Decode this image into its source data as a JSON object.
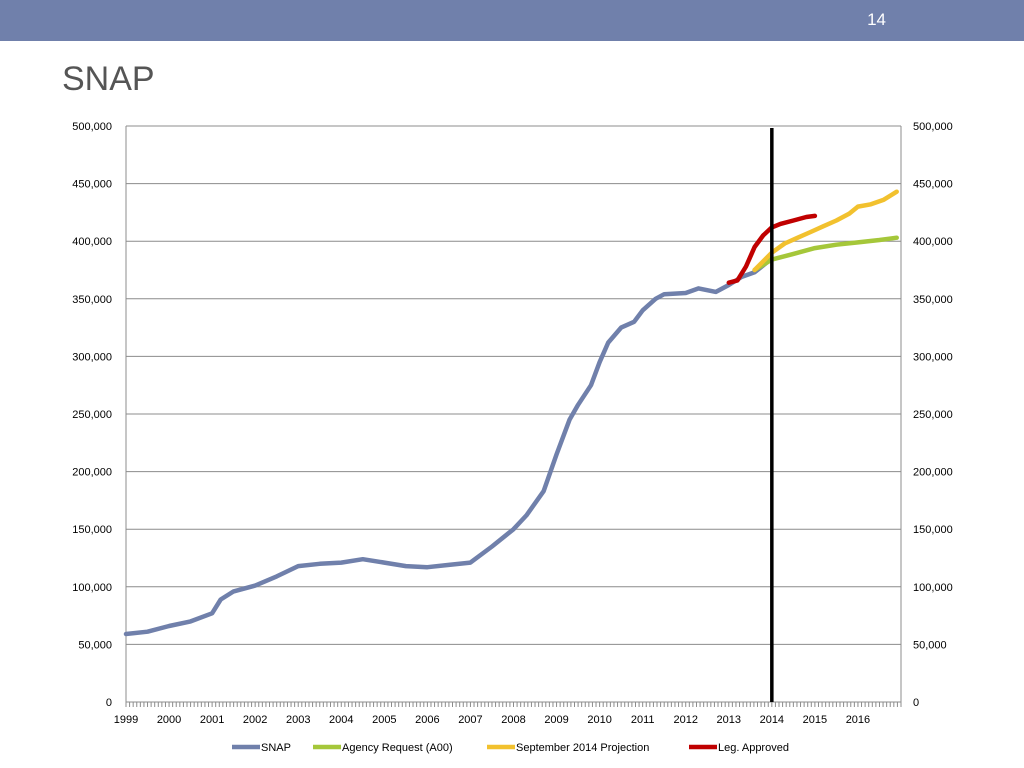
{
  "slide": {
    "page_number": "14",
    "title": "SNAP"
  },
  "chart_data": {
    "type": "line",
    "title": "",
    "xlabel": "",
    "ylabel": "",
    "ylim": [
      0,
      500000
    ],
    "xlim": [
      1999,
      2017
    ],
    "grid": "horizontal",
    "secondary_y_axis": true,
    "legend_position": "bottom",
    "y_ticks": [
      0,
      50000,
      100000,
      150000,
      200000,
      250000,
      300000,
      350000,
      400000,
      450000,
      500000
    ],
    "y_tick_labels": [
      "0",
      "50,000",
      "100,000",
      "150,000",
      "200,000",
      "250,000",
      "300,000",
      "350,000",
      "400,000",
      "450,000",
      "500,000"
    ],
    "x_ticks": [
      1999,
      2000,
      2001,
      2002,
      2003,
      2004,
      2005,
      2006,
      2007,
      2008,
      2009,
      2010,
      2011,
      2012,
      2013,
      2014,
      2015,
      2016
    ],
    "x_tick_labels": [
      "1999",
      "2000",
      "2001",
      "2002",
      "2003",
      "2004",
      "2005",
      "2006",
      "2007",
      "2008",
      "2009",
      "2010",
      "2011",
      "2012",
      "2013",
      "2014",
      "2015",
      "2016"
    ],
    "vertical_marker": {
      "x": 2014.0,
      "color": "#000000"
    },
    "series": [
      {
        "name": "SNAP",
        "color": "#7080ab",
        "x": [
          1999.0,
          1999.5,
          2000.0,
          2000.5,
          2001.0,
          2001.2,
          2001.5,
          2002.0,
          2002.5,
          2003.0,
          2003.5,
          2004.0,
          2004.5,
          2005.0,
          2005.5,
          2006.0,
          2006.5,
          2007.0,
          2007.5,
          2008.0,
          2008.3,
          2008.7,
          2009.0,
          2009.3,
          2009.5,
          2009.8,
          2010.0,
          2010.2,
          2010.5,
          2010.8,
          2011.0,
          2011.3,
          2011.5,
          2012.0,
          2012.3,
          2012.7,
          2013.0,
          2013.3,
          2013.6,
          2014.0
        ],
        "values": [
          59000,
          61000,
          66000,
          70000,
          77000,
          89000,
          96000,
          101000,
          109000,
          118000,
          120000,
          121000,
          124000,
          121000,
          118000,
          117000,
          119000,
          121000,
          135000,
          150000,
          162000,
          183000,
          215000,
          245000,
          258000,
          275000,
          295000,
          312000,
          325000,
          330000,
          340000,
          350000,
          354000,
          355000,
          359000,
          356000,
          362000,
          369000,
          373000,
          385000
        ]
      },
      {
        "name": "Agency Request (A00)",
        "color": "#a5c73a",
        "x": [
          2013.6,
          2014.0,
          2014.5,
          2015.0,
          2015.5,
          2016.0,
          2016.5,
          2016.9
        ],
        "values": [
          375000,
          384000,
          389000,
          394000,
          397000,
          399000,
          401000,
          403000
        ]
      },
      {
        "name": "September 2014 Projection",
        "color": "#f2c12e",
        "x": [
          2013.6,
          2014.0,
          2014.3,
          2014.6,
          2014.9,
          2015.2,
          2015.5,
          2015.8,
          2016.0,
          2016.3,
          2016.6,
          2016.9
        ],
        "values": [
          375000,
          390000,
          398000,
          403000,
          408000,
          413000,
          418000,
          424000,
          430000,
          432000,
          436000,
          443000
        ]
      },
      {
        "name": "Leg. Approved",
        "color": "#c00000",
        "x": [
          2013.0,
          2013.2,
          2013.4,
          2013.6,
          2013.8,
          2014.0,
          2014.2,
          2014.5,
          2014.8,
          2015.0
        ],
        "values": [
          364000,
          366000,
          378000,
          395000,
          405000,
          412000,
          415000,
          418000,
          421000,
          422000
        ]
      }
    ]
  }
}
